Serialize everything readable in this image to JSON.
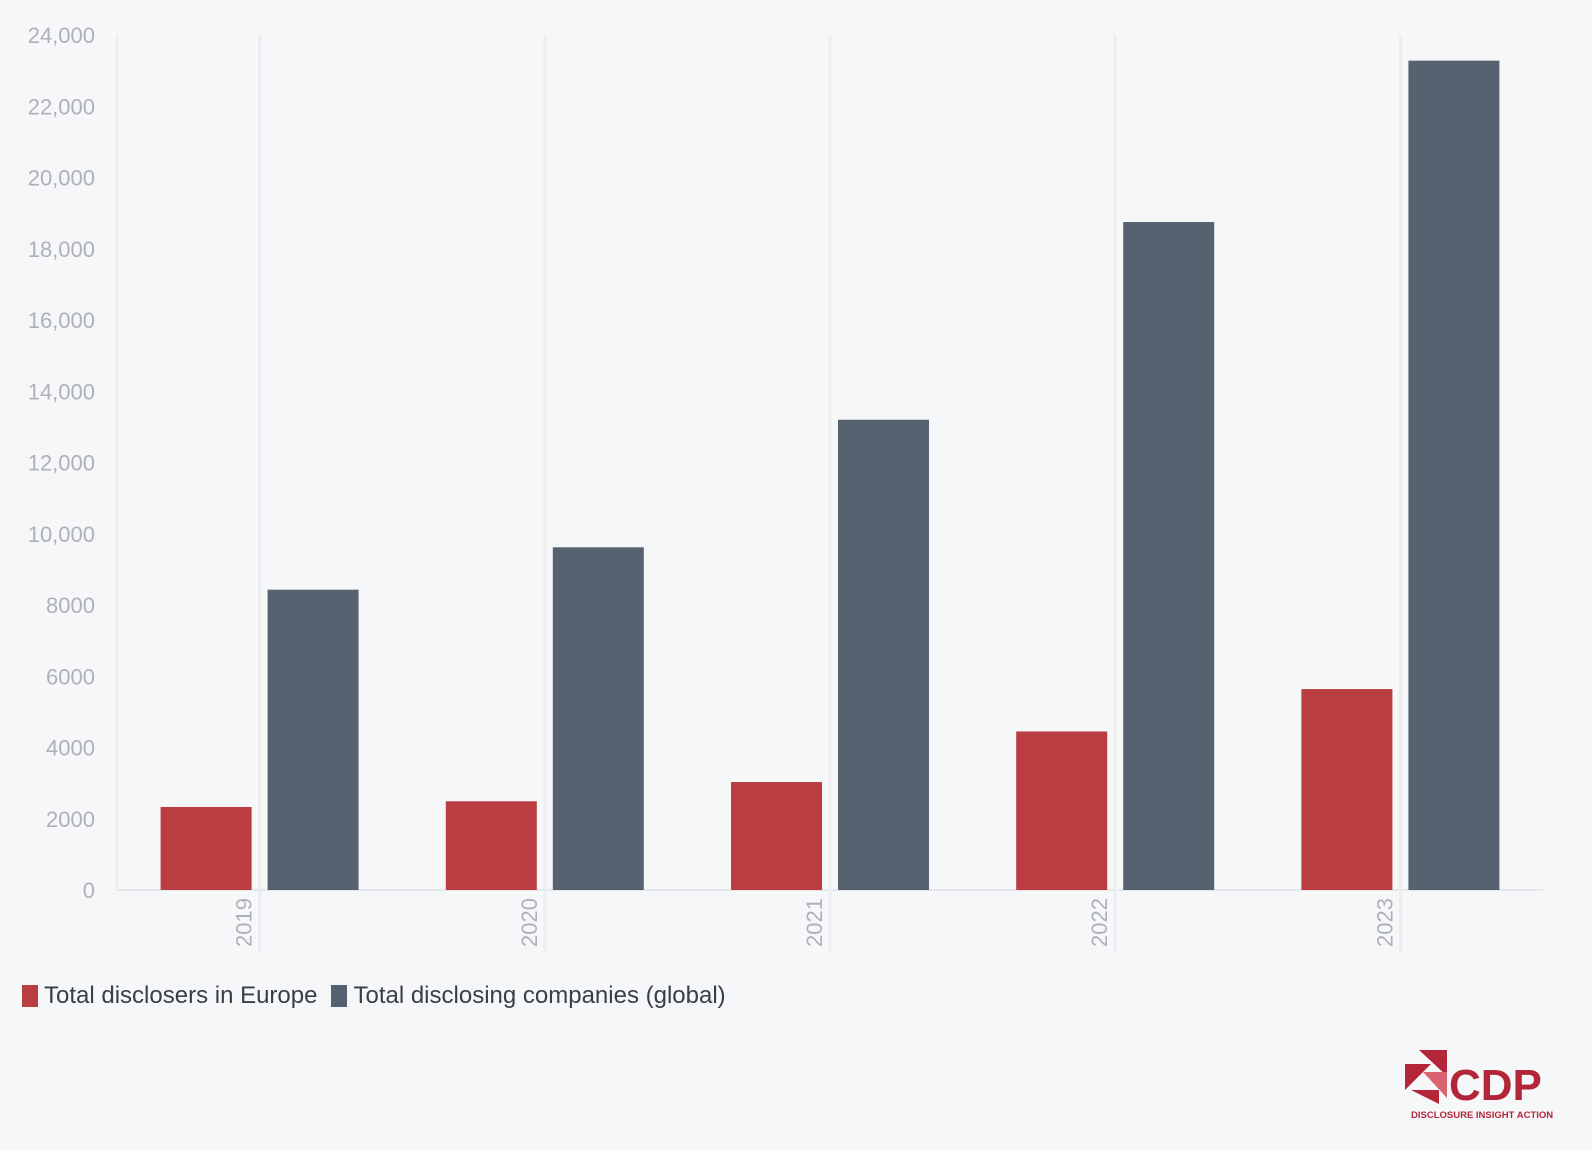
{
  "chart_data": {
    "type": "bar",
    "categories": [
      "2019",
      "2020",
      "2021",
      "2022",
      "2023"
    ],
    "series": [
      {
        "name": "Total disclosers in Europe",
        "color": "#b93d41",
        "values": [
          2330,
          2490,
          3030,
          4450,
          5640
        ]
      },
      {
        "name": "Total disclosing companies (global)",
        "color": "#56626f",
        "values": [
          8430,
          9620,
          13200,
          18750,
          23280
        ]
      }
    ],
    "ylim": [
      0,
      24000
    ],
    "yticks": [
      0,
      2000,
      4000,
      6000,
      8000,
      10000,
      12000,
      14000,
      16000,
      18000,
      20000,
      22000,
      24000
    ],
    "ytick_labels": [
      "0",
      "2000",
      "4000",
      "6000",
      "8000",
      "10,000",
      "12,000",
      "14,000",
      "16,000",
      "18,000",
      "20,000",
      "22,000",
      "24,000"
    ],
    "xlabel": "",
    "ylabel": "",
    "title": "",
    "grid": true,
    "legend_position": "bottom-left",
    "x_tick_rotation": "vertical"
  },
  "logo": {
    "wordmark": "CDP",
    "tagline": "DISCLOSURE INSIGHT ACTION",
    "color": "#b3263a"
  }
}
